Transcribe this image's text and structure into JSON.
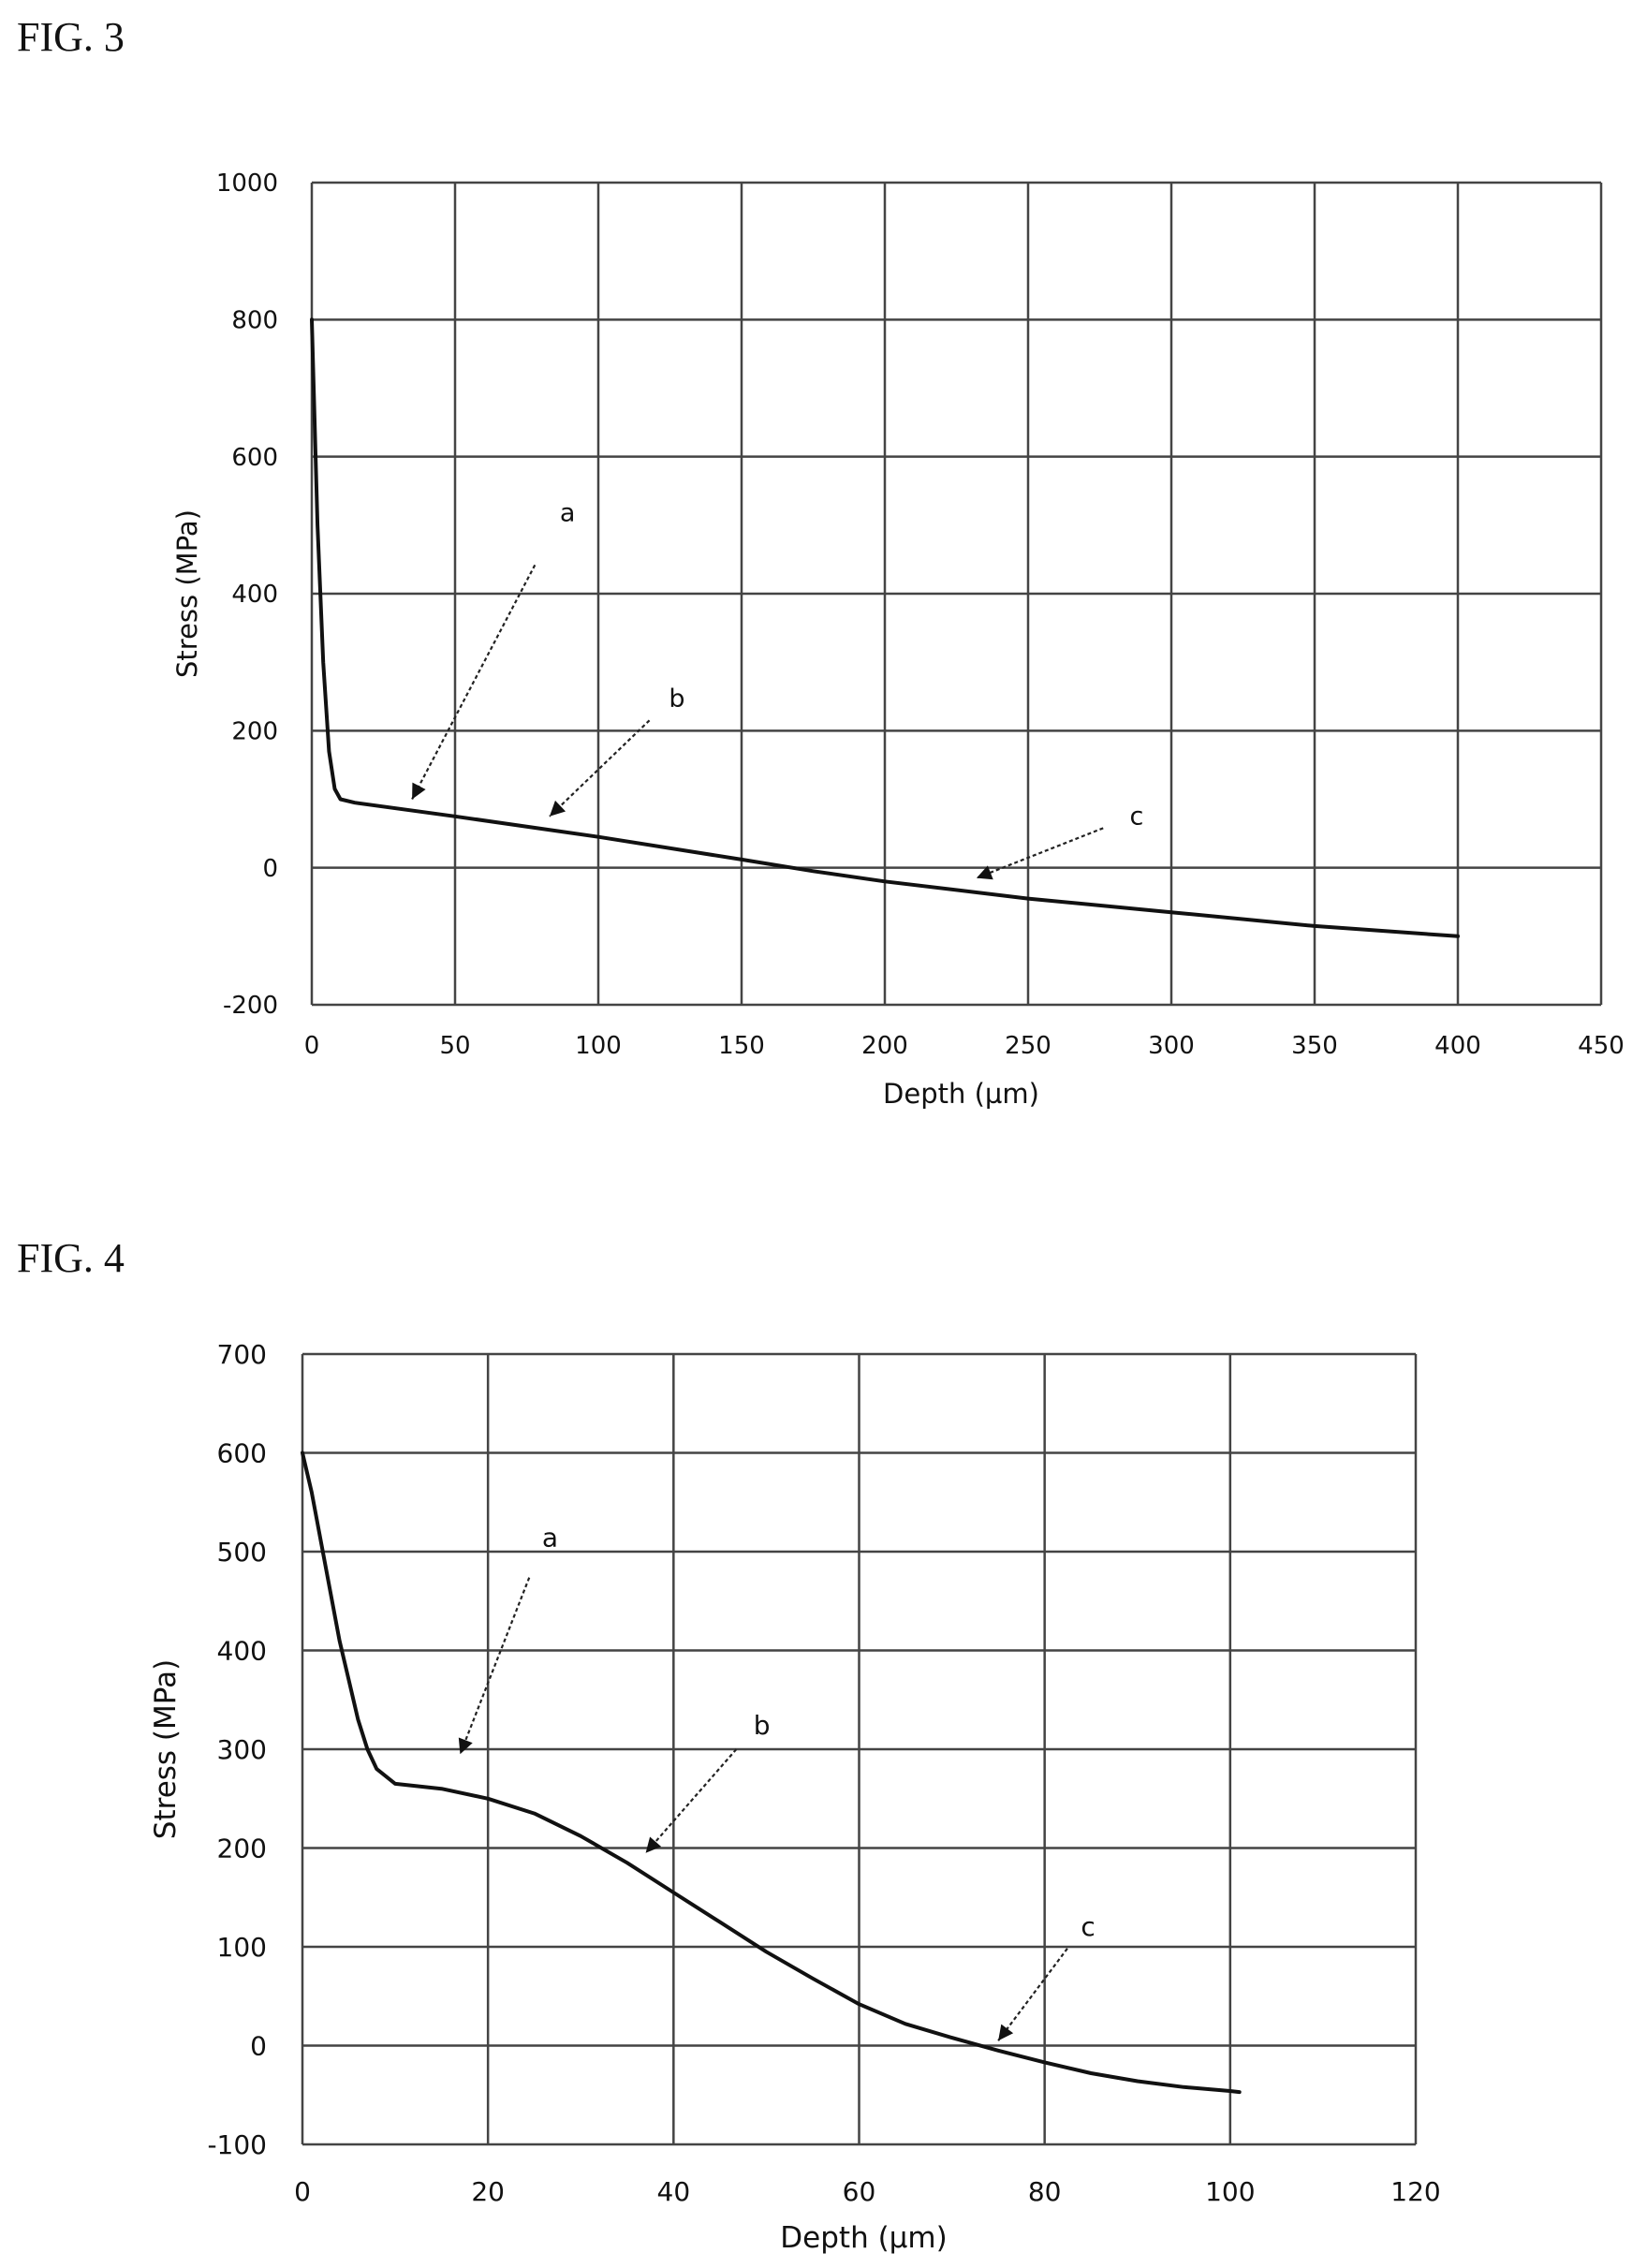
{
  "figures": [
    {
      "label": "FIG. 3"
    },
    {
      "label": "FIG. 4"
    }
  ],
  "chart_data": [
    {
      "type": "line",
      "title": "",
      "xlabel": "Depth (µm)",
      "ylabel": "Stress (MPa)",
      "xlim": [
        0,
        450
      ],
      "ylim": [
        -200,
        1000
      ],
      "xticks": [
        0,
        50,
        100,
        150,
        200,
        250,
        300,
        350,
        400,
        450
      ],
      "yticks": [
        -200,
        0,
        200,
        400,
        600,
        800,
        1000
      ],
      "grid": true,
      "series": [
        {
          "x": [
            0,
            2,
            4,
            6,
            8,
            10,
            15,
            50,
            100,
            150,
            175,
            200,
            250,
            300,
            350,
            400
          ],
          "y": [
            800,
            500,
            300,
            170,
            115,
            100,
            95,
            75,
            45,
            12,
            -5,
            -20,
            -45,
            -65,
            -85,
            -100
          ]
        }
      ],
      "annotations": [
        {
          "text": "a",
          "x": 35,
          "y": 100
        },
        {
          "text": "b",
          "x": 83,
          "y": 75
        },
        {
          "text": "c",
          "x": 232,
          "y": -15
        }
      ]
    },
    {
      "type": "line",
      "title": "",
      "xlabel": "Depth (µm)",
      "ylabel": "Stress (MPa)",
      "xlim": [
        0,
        120
      ],
      "ylim": [
        -100,
        700
      ],
      "xticks": [
        0,
        20,
        40,
        60,
        80,
        100,
        120
      ],
      "yticks": [
        -100,
        0,
        100,
        200,
        300,
        400,
        500,
        600,
        700
      ],
      "grid": true,
      "series": [
        {
          "x": [
            0,
            1,
            2,
            3,
            4,
            5,
            6,
            7,
            8,
            10,
            15,
            20,
            25,
            30,
            35,
            40,
            45,
            50,
            55,
            60,
            65,
            70,
            75,
            80,
            85,
            90,
            95,
            100,
            101
          ],
          "y": [
            600,
            560,
            510,
            460,
            410,
            370,
            330,
            300,
            280,
            265,
            260,
            250,
            235,
            212,
            185,
            155,
            125,
            95,
            68,
            42,
            22,
            8,
            -5,
            -17,
            -28,
            -36,
            -42,
            -46,
            -47
          ]
        }
      ],
      "annotations": [
        {
          "text": "a",
          "x": 17,
          "y": 295
        },
        {
          "text": "b",
          "x": 37,
          "y": 195
        },
        {
          "text": "c",
          "x": 75,
          "y": 5
        }
      ]
    }
  ]
}
